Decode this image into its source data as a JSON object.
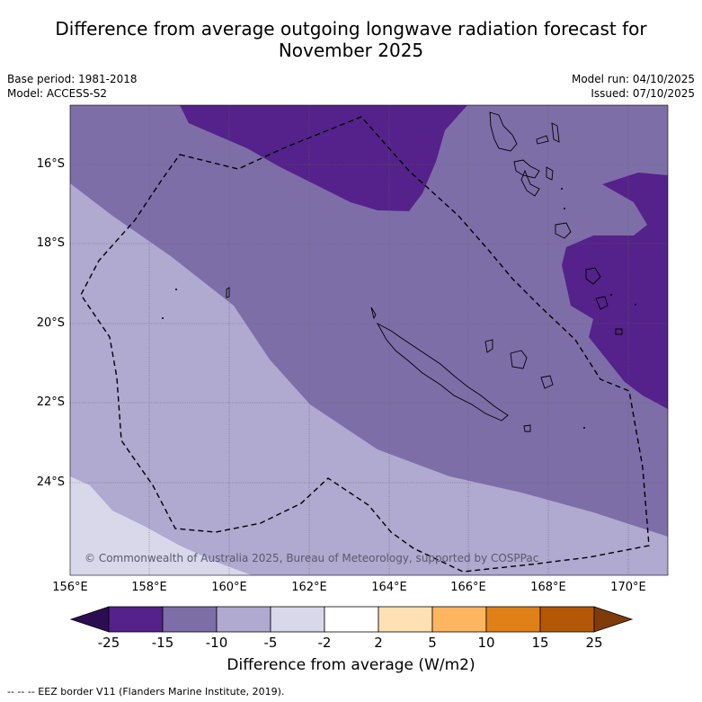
{
  "title_line1": "Difference from average outgoing longwave radiation forecast for",
  "title_line2": "November 2025",
  "base_period": "Base period: 1981-2018",
  "model": "Model: ACCESS-S2",
  "model_run": "Model run: 04/10/2025",
  "issued": "Issued: 07/10/2025",
  "copyright": "© Commonwealth of Australia 2025, Bureau of Meteorology, supported by COSPPac",
  "lat_labels": [
    "16°S",
    "18°S",
    "20°S",
    "22°S",
    "24°S"
  ],
  "lon_labels": [
    "156°E",
    "158°E",
    "160°E",
    "162°E",
    "164°E",
    "166°E",
    "168°E",
    "170°E"
  ],
  "colorbar": {
    "ticks": [
      "-25",
      "-15",
      "-10",
      "-5",
      "-2",
      "2",
      "5",
      "10",
      "15",
      "25"
    ],
    "colors": [
      "#2d0d52",
      "#54228a",
      "#7d6ea8",
      "#b0a9d0",
      "#d9d8ea",
      "#ffffff",
      "#ffdfb4",
      "#fdb55f",
      "#e08118",
      "#b35806",
      "#7f3b08"
    ],
    "title": "Difference from average (W/m2)"
  },
  "footnote": "-- -- -- EEZ border V11 (Flanders Marine Institute, 2019)."
}
